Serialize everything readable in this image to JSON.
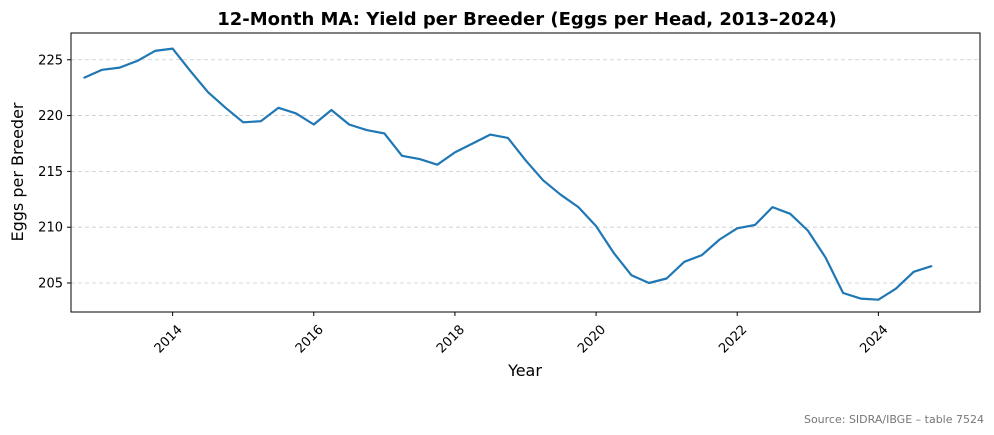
{
  "chart_data": {
    "type": "line",
    "title": "12-Month MA: Yield per Breeder (Eggs per Head, 2013–2024)",
    "xlabel": "Year",
    "ylabel": "Eggs per Breeder",
    "xlim": [
      2012.56,
      2025.44
    ],
    "ylim": [
      202.4,
      227.4
    ],
    "xticks": [
      2014,
      2016,
      2018,
      2020,
      2022,
      2024
    ],
    "xtick_labels": [
      "2014",
      "2016",
      "2018",
      "2020",
      "2022",
      "2024"
    ],
    "yticks": [
      205,
      210,
      215,
      220,
      225
    ],
    "ytick_labels": [
      "205",
      "210",
      "215",
      "220",
      "225"
    ],
    "grid": "y-dashed",
    "line_color": "#1f77b4",
    "series": [
      {
        "x": [
          2012.75,
          2013.0,
          2013.25,
          2013.5,
          2013.75,
          2014.0,
          2014.25,
          2014.5,
          2014.75,
          2015.0,
          2015.25,
          2015.5,
          2015.75,
          2016.0,
          2016.25,
          2016.5,
          2016.75,
          2017.0,
          2017.25,
          2017.5,
          2017.75,
          2018.0,
          2018.25,
          2018.5,
          2018.75,
          2019.0,
          2019.25,
          2019.5,
          2019.75,
          2020.0,
          2020.25,
          2020.5,
          2020.75,
          2021.0,
          2021.25,
          2021.5,
          2021.75,
          2022.0,
          2022.25,
          2022.5,
          2022.75,
          2023.0,
          2023.25,
          2023.5,
          2023.75,
          2024.0,
          2024.25,
          2024.5,
          2024.75
        ],
        "values": [
          223.4,
          224.1,
          224.3,
          224.9,
          225.8,
          226.0,
          224.0,
          222.1,
          220.7,
          219.4,
          219.5,
          220.7,
          220.2,
          219.2,
          220.5,
          219.2,
          218.7,
          218.4,
          216.4,
          216.1,
          215.6,
          216.7,
          217.5,
          218.3,
          218.0,
          216.0,
          214.2,
          212.9,
          211.8,
          210.1,
          207.7,
          205.7,
          205.0,
          205.4,
          206.9,
          207.5,
          208.9,
          209.9,
          210.2,
          211.8,
          211.2,
          209.7,
          207.3,
          204.1,
          203.6,
          203.5,
          204.5,
          206.0,
          206.5
        ]
      }
    ]
  },
  "source_note": "Source: SIDRA/IBGE – table 7524"
}
